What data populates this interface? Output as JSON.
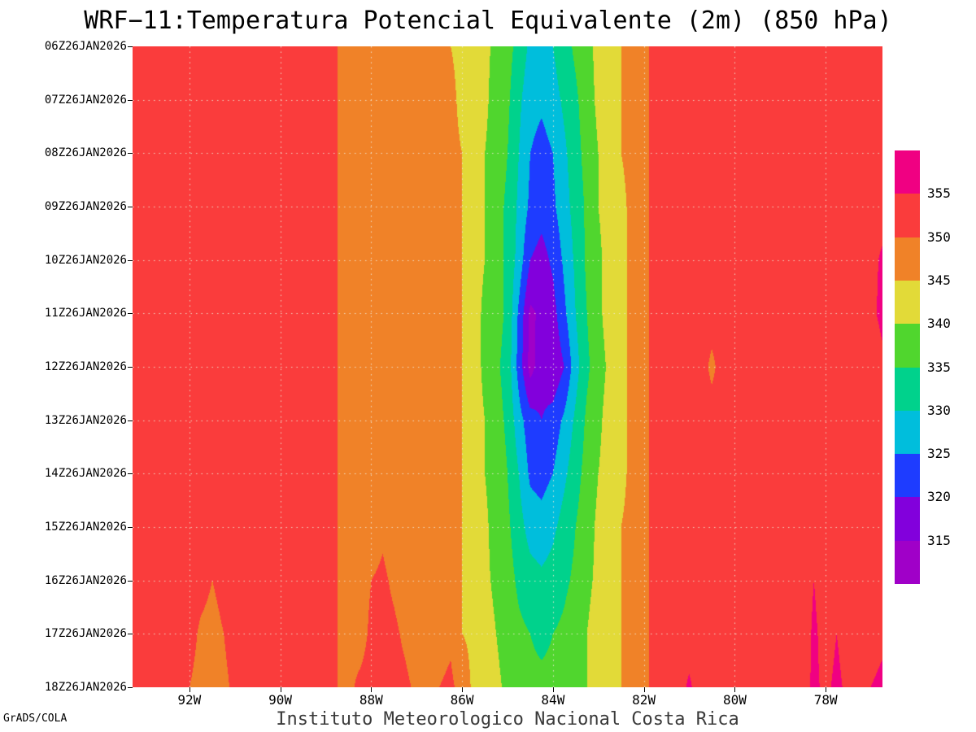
{
  "chart": {
    "title": "WRF−11:Temperatura Potencial Equivalente (2m) (850 hPa)",
    "footer": "Instituto Meteorologico Nacional Costa Rica",
    "credit": "GrADS/COLA"
  },
  "chart_data": {
    "type": "heatmap",
    "title": "WRF−11:Temperatura Potencial Equivalente (2m) (850 hPa)",
    "grid": "dotted",
    "legend_position": "right",
    "x_axis": {
      "ticks": [
        "92W",
        "90W",
        "88W",
        "86W",
        "84W",
        "82W",
        "80W",
        "78W"
      ],
      "tick_lons": [
        92,
        90,
        88,
        86,
        84,
        82,
        80,
        78
      ],
      "lon_start": 93.25,
      "lon_end": 76.75
    },
    "y_axis": {
      "ticks": [
        "06Z26JAN2026",
        "07Z26JAN2026",
        "08Z26JAN2026",
        "09Z26JAN2026",
        "10Z26JAN2026",
        "11Z26JAN2026",
        "12Z26JAN2026",
        "13Z26JAN2026",
        "14Z26JAN2026",
        "15Z26JAN2026",
        "16Z26JAN2026",
        "17Z26JAN2026",
        "18Z26JAN2026"
      ]
    },
    "levels": [
      315,
      320,
      325,
      330,
      335,
      340,
      345,
      350,
      355
    ],
    "legend_labels": [
      "355",
      "350",
      "345",
      "340",
      "335",
      "330",
      "325",
      "320",
      "315"
    ],
    "band_colors": [
      "#a000c8",
      "#8200dc",
      "#1e3cff",
      "#00bedc",
      "#00d28c",
      "#50d62e",
      "#e2da38",
      "#f08228",
      "#fa3c3c",
      "#f00082"
    ],
    "values": [
      [
        352,
        352,
        352,
        352,
        352,
        352,
        352,
        352,
        352,
        352,
        352,
        352,
        352,
        352,
        352,
        352,
        352,
        351,
        350,
        349,
        348,
        347,
        347,
        347,
        347,
        347,
        346,
        346,
        345,
        344,
        343,
        341,
        339,
        337,
        333,
        329,
        328,
        330,
        333,
        336,
        339,
        341,
        343,
        345,
        346,
        349,
        351,
        352,
        352,
        352,
        352,
        352,
        352,
        352,
        352,
        352,
        352,
        352,
        352,
        352,
        352,
        352,
        352,
        352,
        352,
        352,
        352
      ],
      [
        352,
        352,
        352,
        352,
        352,
        352,
        352,
        352,
        352,
        352,
        352,
        352,
        352,
        352,
        352,
        352,
        352,
        351,
        350,
        349,
        348,
        347,
        347,
        347,
        347,
        347,
        346,
        346,
        346,
        344,
        343,
        341,
        338,
        336,
        331,
        327,
        326,
        328,
        331,
        334,
        338,
        341,
        343,
        345,
        346,
        349,
        351,
        352,
        352,
        352,
        352,
        352,
        352,
        352,
        352,
        352,
        352,
        352,
        352,
        352,
        352,
        352,
        352,
        352,
        352,
        352,
        352
      ],
      [
        352,
        352,
        352,
        352,
        352,
        352,
        352,
        352,
        352,
        352,
        352,
        352,
        352,
        352,
        352,
        352,
        352,
        351,
        350,
        349,
        348,
        347,
        347,
        347,
        347,
        347,
        346,
        346,
        346,
        345,
        343,
        340,
        338,
        335,
        330,
        325,
        323,
        325,
        329,
        333,
        337,
        340,
        343,
        345,
        346,
        349,
        351,
        352,
        352,
        352,
        352,
        352,
        352,
        352,
        352,
        352,
        352,
        352,
        352,
        352,
        352,
        352,
        352,
        352,
        352,
        352,
        352
      ],
      [
        352,
        352,
        352,
        352,
        352,
        352,
        352,
        352,
        352,
        352,
        352,
        352,
        352,
        352,
        352,
        352,
        352,
        351,
        350,
        349,
        348,
        347,
        347,
        347,
        347,
        347,
        346,
        346,
        346,
        345,
        342,
        340,
        337,
        334,
        329,
        324,
        322,
        324,
        328,
        332,
        336,
        340,
        342,
        344,
        346,
        349,
        351,
        352,
        352,
        352,
        352,
        352,
        352,
        352,
        352,
        352,
        352,
        352,
        352,
        352,
        352,
        352,
        352,
        352,
        352,
        352,
        352
      ],
      [
        352,
        352,
        352,
        352,
        352,
        352,
        352,
        352,
        352,
        352,
        352,
        352,
        352,
        352,
        352,
        352,
        352,
        351,
        350,
        349,
        348,
        347,
        347,
        347,
        347,
        347,
        346,
        346,
        346,
        345,
        342,
        340,
        337,
        334,
        328,
        320,
        318,
        321,
        326,
        331,
        336,
        339,
        342,
        344,
        346,
        349,
        351,
        352,
        352,
        352,
        352,
        352,
        352,
        352,
        352,
        352,
        352,
        352,
        352,
        352,
        352,
        352,
        352,
        352,
        352,
        353,
        356
      ],
      [
        352,
        352,
        352,
        352,
        352,
        352,
        352,
        352,
        352,
        352,
        352,
        352,
        352,
        352,
        352,
        352,
        352,
        351,
        350,
        349,
        348,
        347,
        347,
        347,
        347,
        347,
        346,
        346,
        346,
        345,
        342,
        339,
        337,
        334,
        324,
        314,
        316,
        318,
        324,
        330,
        335,
        339,
        342,
        344,
        346,
        349,
        351,
        352,
        352,
        352,
        352,
        352,
        352,
        352,
        352,
        352,
        352,
        352,
        352,
        352,
        352,
        352,
        352,
        352,
        352,
        354,
        356
      ],
      [
        352,
        352,
        352,
        352,
        352,
        352,
        352,
        352,
        352,
        352,
        352,
        352,
        352,
        352,
        352,
        352,
        352,
        351,
        350,
        349,
        348,
        347,
        347,
        347,
        347,
        347,
        346,
        346,
        346,
        345,
        342,
        339,
        336,
        333,
        323,
        313,
        318,
        316,
        320,
        328,
        334,
        338,
        341,
        344,
        346,
        349,
        351,
        352,
        352,
        352,
        352,
        349,
        352,
        352,
        352,
        352,
        352,
        352,
        352,
        352,
        352,
        352,
        352,
        352,
        352,
        352,
        354
      ],
      [
        352,
        352,
        352,
        352,
        352,
        352,
        352,
        352,
        352,
        352,
        352,
        352,
        352,
        352,
        352,
        352,
        352,
        351,
        350,
        349,
        348,
        347,
        347,
        347,
        347,
        347,
        346,
        346,
        346,
        345,
        342,
        340,
        337,
        334,
        327,
        322,
        320,
        322,
        326,
        331,
        336,
        339,
        342,
        344,
        346,
        349,
        351,
        352,
        352,
        352,
        352,
        352,
        352,
        352,
        352,
        352,
        352,
        352,
        352,
        352,
        352,
        352,
        352,
        352,
        352,
        352,
        352
      ],
      [
        352,
        352,
        352,
        352,
        352,
        352,
        352,
        352,
        352,
        352,
        352,
        352,
        352,
        352,
        352,
        352,
        352,
        351,
        350,
        349,
        348,
        347,
        347,
        347,
        347,
        347,
        346,
        346,
        346,
        345,
        343,
        340,
        338,
        335,
        330,
        324,
        323,
        325,
        329,
        333,
        337,
        340,
        342,
        344,
        346,
        349,
        351,
        352,
        352,
        352,
        352,
        352,
        352,
        352,
        352,
        352,
        352,
        352,
        352,
        352,
        352,
        352,
        352,
        352,
        352,
        352,
        352
      ],
      [
        352,
        352,
        352,
        352,
        352,
        352,
        352,
        352,
        352,
        352,
        352,
        352,
        352,
        352,
        352,
        352,
        352,
        351,
        350,
        349,
        348,
        347,
        349,
        347,
        347,
        347,
        346,
        346,
        346,
        345,
        343,
        341,
        338,
        336,
        332,
        328,
        327,
        329,
        332,
        335,
        338,
        341,
        343,
        345,
        346,
        349,
        351,
        352,
        352,
        352,
        352,
        352,
        352,
        352,
        352,
        352,
        352,
        352,
        352,
        352,
        353,
        352,
        352,
        352,
        352,
        352,
        352
      ],
      [
        352,
        352,
        352,
        352,
        352,
        352,
        352,
        350,
        352,
        352,
        352,
        352,
        352,
        352,
        352,
        352,
        352,
        351,
        350,
        349,
        348,
        350,
        351,
        349,
        347,
        347,
        346,
        346,
        346,
        345,
        343,
        341,
        339,
        337,
        334,
        332,
        331,
        332,
        334,
        336,
        339,
        341,
        343,
        345,
        346,
        349,
        351,
        352,
        352,
        352,
        352,
        352,
        352,
        352,
        352,
        352,
        352,
        352,
        352,
        352,
        355,
        352,
        354,
        352,
        352,
        352,
        352
      ],
      [
        352,
        352,
        352,
        352,
        352,
        352,
        349,
        348,
        350,
        352,
        352,
        352,
        352,
        352,
        352,
        352,
        352,
        351,
        350,
        349,
        348,
        351,
        352,
        351,
        349,
        347,
        346,
        348,
        349,
        345,
        344,
        342,
        340,
        338,
        336,
        335,
        334,
        335,
        336,
        338,
        340,
        342,
        343,
        345,
        346,
        349,
        351,
        352,
        352,
        352,
        352,
        352,
        352,
        352,
        352,
        352,
        352,
        352,
        352,
        352,
        356,
        353,
        355,
        353,
        352,
        353,
        354
      ],
      [
        352,
        350,
        352,
        352,
        352,
        350,
        348,
        347,
        349,
        351,
        352,
        352,
        352,
        352,
        352,
        352,
        352,
        351,
        350,
        349,
        351,
        352,
        352,
        352,
        351,
        349,
        346,
        350,
        351,
        348,
        344,
        342,
        341,
        339,
        337,
        336,
        336,
        336,
        337,
        338,
        340,
        342,
        344,
        345,
        346,
        349,
        351,
        352,
        352,
        356,
        352,
        352,
        352,
        352,
        352,
        352,
        352,
        352,
        352,
        353,
        356,
        354,
        356,
        354,
        353,
        355,
        356
      ]
    ]
  }
}
